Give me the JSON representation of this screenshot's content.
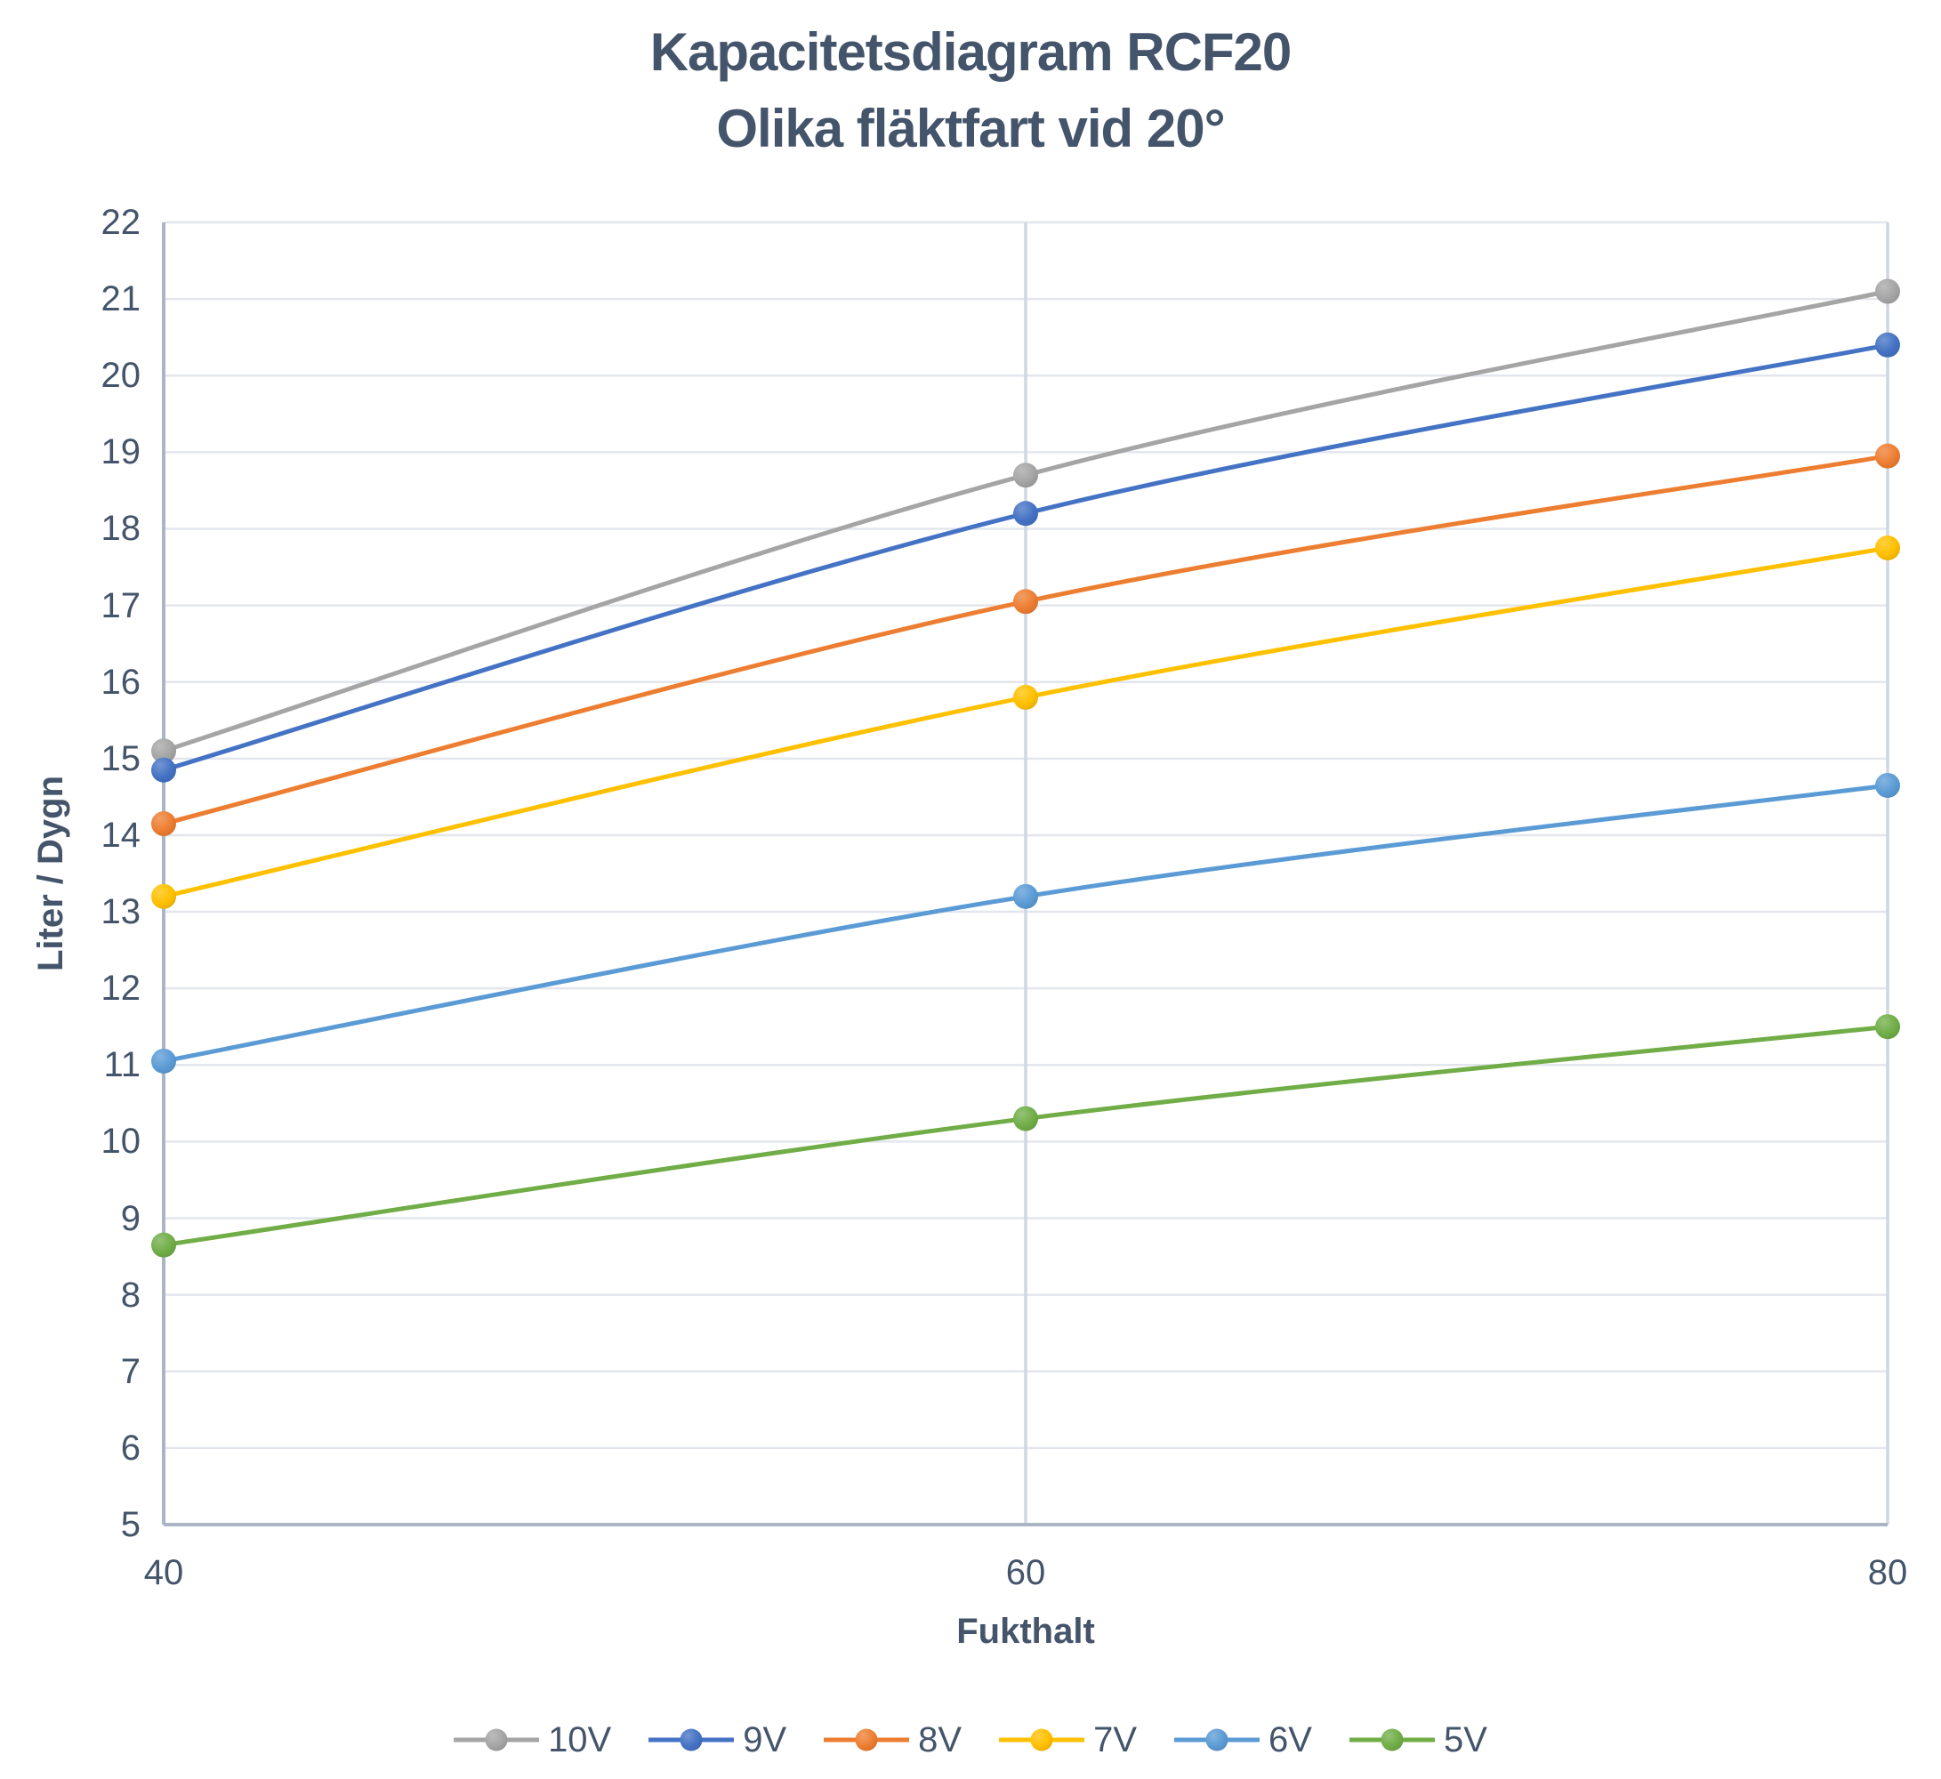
{
  "title": {
    "line1": "Kapacitetsdiagram RCF20",
    "line2": "Olika fläktfart vid 20°"
  },
  "colors": {
    "text": "#44546A",
    "axis_line": "#ABB5C5",
    "gridline_horizontal": "#E3E6ED",
    "gridline_vertical": "#D0D7E2",
    "background": "#FFFFFF"
  },
  "chart_data": {
    "type": "line",
    "title": "Kapacitetsdiagram RCF20 — Olika fläktfart vid 20°",
    "x": [
      40,
      60,
      80
    ],
    "x_tick_labels": [
      "40",
      "60",
      "80"
    ],
    "y_tick_labels": [
      "5",
      "6",
      "7",
      "8",
      "9",
      "10",
      "11",
      "12",
      "13",
      "14",
      "15",
      "16",
      "17",
      "18",
      "19",
      "20",
      "21",
      "22"
    ],
    "xlabel": "Fukthalt",
    "ylabel": "Liter / Dygn",
    "ylim": [
      5,
      22
    ],
    "y_step": 1,
    "grid": true,
    "smoothed": true,
    "legend_position": "bottom",
    "series": [
      {
        "name": "10V",
        "color": "#A5A5A5",
        "values": [
          15.1,
          18.7,
          21.1
        ]
      },
      {
        "name": "9V",
        "color": "#4472C4",
        "values": [
          14.85,
          18.2,
          20.4
        ]
      },
      {
        "name": "8V",
        "color": "#ED7D31",
        "values": [
          14.15,
          17.05,
          18.95
        ]
      },
      {
        "name": "7V",
        "color": "#FFC000",
        "values": [
          13.2,
          15.8,
          17.75
        ]
      },
      {
        "name": "6V",
        "color": "#5B9BD5",
        "values": [
          11.05,
          13.2,
          14.65
        ]
      },
      {
        "name": "5V",
        "color": "#70AD47",
        "values": [
          8.65,
          10.3,
          11.5
        ]
      }
    ]
  }
}
